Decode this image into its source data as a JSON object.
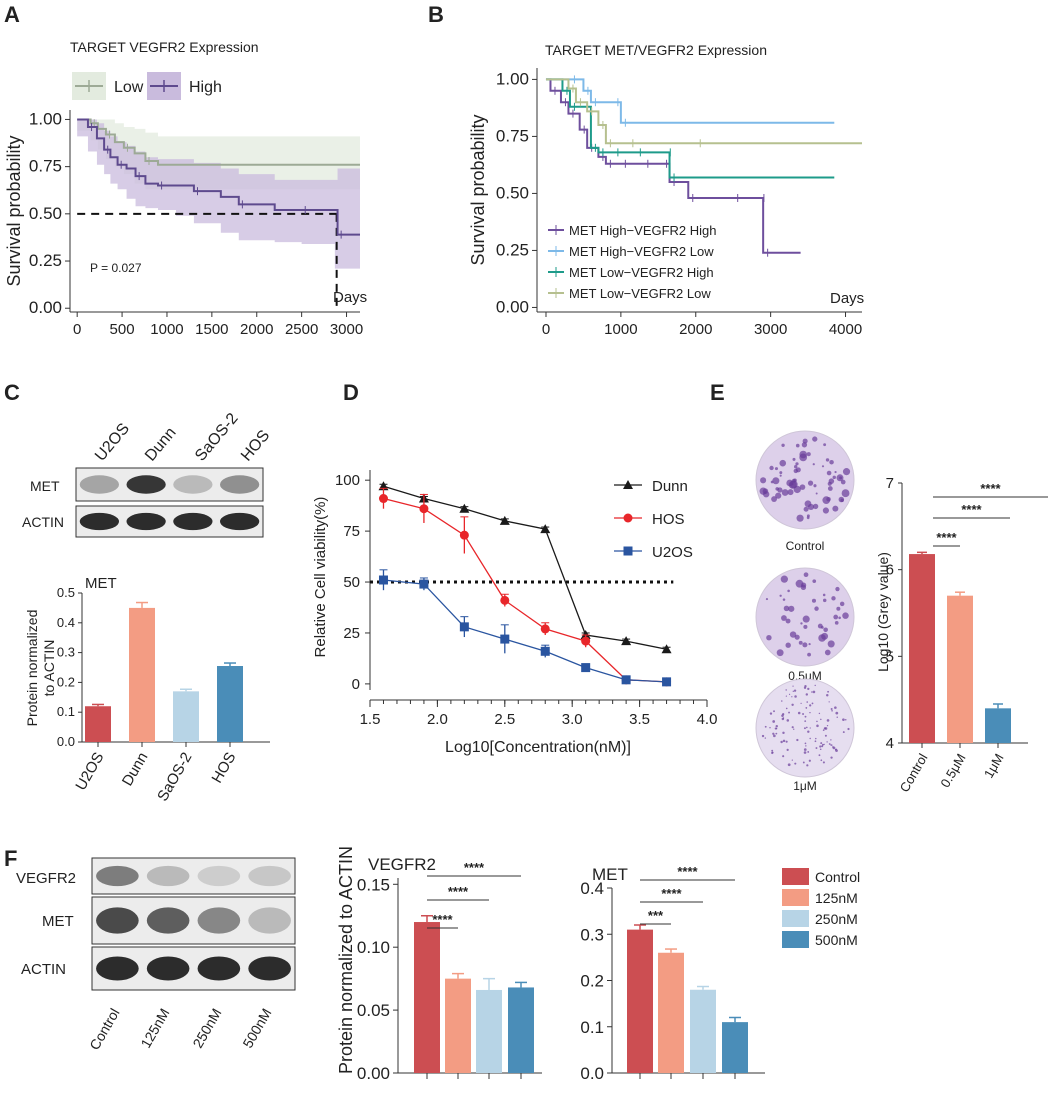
{
  "panels": {
    "A": "A",
    "B": "B",
    "C": "C",
    "D": "D",
    "E": "E",
    "F": "F"
  },
  "colors": {
    "km_low": "#9daa96",
    "km_high": "#5e4a8e",
    "b1": "#6e4f9d",
    "b2": "#7db9e8",
    "b3": "#1e9b8a",
    "b4": "#b6c08f",
    "red": "#cc4e52",
    "salmon": "#f39c83",
    "lightblue": "#b7d4e6",
    "blue": "#4a8db8",
    "dunn": "#1a1a1a",
    "hos": "#e8262a",
    "u2os": "#2a55a0"
  },
  "chart_data": [
    {
      "id": "A",
      "type": "line",
      "title": "TARGET VEGFR2 Expression",
      "xlabel": "Days",
      "ylabel": "Survival probability",
      "xlim": [
        -80,
        3150
      ],
      "ylim": [
        -0.02,
        1.05
      ],
      "xticks": [
        0,
        500,
        1000,
        1500,
        2000,
        2500,
        3000
      ],
      "yticks": [
        0.0,
        0.25,
        0.5,
        0.75,
        1.0
      ],
      "ytick_labels": [
        "0.00",
        "0.25",
        "0.50",
        "0.75",
        "1.00"
      ],
      "annotation": "P = 0.027",
      "legend": [
        "Low",
        "High"
      ],
      "series": [
        {
          "name": "Low",
          "color": "#9daa96",
          "band": "#e3ebdf",
          "x": [
            0,
            150,
            230,
            320,
            420,
            520,
            640,
            760,
            900,
            3150
          ],
          "y": [
            1.0,
            0.98,
            0.95,
            0.92,
            0.88,
            0.85,
            0.82,
            0.78,
            0.76,
            0.76
          ],
          "lo": [
            1.0,
            0.94,
            0.89,
            0.84,
            0.79,
            0.75,
            0.71,
            0.66,
            0.63,
            0.63
          ],
          "hi": [
            1.0,
            1.0,
            1.0,
            1.0,
            0.98,
            0.96,
            0.95,
            0.93,
            0.91,
            0.91
          ]
        },
        {
          "name": "High",
          "color": "#5e4a8e",
          "band": "#c9bbdd",
          "x": [
            0,
            120,
            220,
            300,
            370,
            450,
            550,
            650,
            760,
            900,
            1100,
            1300,
            1600,
            1800,
            2200,
            2500,
            2870,
            2900,
            3150
          ],
          "y": [
            1.0,
            0.96,
            0.9,
            0.84,
            0.8,
            0.76,
            0.74,
            0.7,
            0.66,
            0.65,
            0.65,
            0.62,
            0.59,
            0.55,
            0.52,
            0.52,
            0.52,
            0.39,
            0.39
          ],
          "lo": [
            1.0,
            0.91,
            0.83,
            0.76,
            0.71,
            0.66,
            0.63,
            0.58,
            0.54,
            0.53,
            0.52,
            0.49,
            0.45,
            0.4,
            0.36,
            0.35,
            0.34,
            0.21,
            0.21
          ],
          "hi": [
            1.0,
            1.0,
            0.98,
            0.94,
            0.91,
            0.88,
            0.86,
            0.83,
            0.8,
            0.79,
            0.79,
            0.77,
            0.74,
            0.71,
            0.68,
            0.68,
            0.68,
            0.74,
            0.74
          ]
        }
      ]
    },
    {
      "id": "B",
      "type": "line",
      "title": "TARGET MET/VEGFR2 Expression",
      "xlabel": "Days",
      "ylabel": "Survival probability",
      "xlim": [
        -120,
        4220
      ],
      "ylim": [
        -0.02,
        1.05
      ],
      "xticks": [
        0,
        1000,
        2000,
        3000,
        4000
      ],
      "yticks": [
        0.0,
        0.25,
        0.5,
        0.75,
        1.0
      ],
      "ytick_labels": [
        "0.00",
        "0.25",
        "0.50",
        "0.75",
        "1.00"
      ],
      "legend": [
        "MET High−VEGFR2 High",
        "MET High−VEGFR2 Low",
        "MET Low−VEGFR2 High",
        "MET Low−VEGFR2 Low"
      ],
      "series": [
        {
          "name": "MET High−VEGFR2 High",
          "color": "#6e4f9d",
          "x": [
            0,
            60,
            200,
            300,
            450,
            550,
            700,
            800,
            1000,
            1300,
            1550,
            1650,
            1900,
            2500,
            2850,
            2900,
            3400
          ],
          "y": [
            1.0,
            0.95,
            0.9,
            0.85,
            0.78,
            0.7,
            0.66,
            0.63,
            0.63,
            0.63,
            0.63,
            0.55,
            0.48,
            0.48,
            0.48,
            0.24,
            0.24
          ]
        },
        {
          "name": "MET High−VEGFR2 Low",
          "color": "#7db9e8",
          "x": [
            0,
            320,
            500,
            600,
            900,
            1000,
            3850
          ],
          "y": [
            1.0,
            1.0,
            0.95,
            0.9,
            0.9,
            0.81,
            0.81
          ]
        },
        {
          "name": "MET Low−VEGFR2 High",
          "color": "#1e9b8a",
          "x": [
            0,
            220,
            320,
            600,
            700,
            900,
            1200,
            1600,
            1650,
            3850
          ],
          "y": [
            1.0,
            0.95,
            0.88,
            0.7,
            0.68,
            0.68,
            0.68,
            0.68,
            0.57,
            0.57
          ]
        },
        {
          "name": "MET Low−VEGFR2 Low",
          "color": "#b6c08f",
          "x": [
            0,
            300,
            400,
            550,
            700,
            800,
            1100,
            2000,
            4220
          ],
          "y": [
            1.0,
            0.96,
            0.9,
            0.86,
            0.8,
            0.72,
            0.72,
            0.72,
            0.72
          ]
        }
      ]
    },
    {
      "id": "C",
      "type": "bar",
      "title": "MET",
      "ylabel": "Protein normalized\nto ACTIN",
      "categories": [
        "U2OS",
        "Dunn",
        "SaOS-2",
        "HOS"
      ],
      "values": [
        0.12,
        0.45,
        0.17,
        0.255
      ],
      "errors": [
        0.006,
        0.018,
        0.007,
        0.01
      ],
      "ylim": [
        0,
        0.5
      ],
      "yticks": [
        0.0,
        0.1,
        0.2,
        0.3,
        0.4,
        0.5
      ],
      "ytick_labels": [
        "0.0",
        "0.1",
        "0.2",
        "0.3",
        "0.4",
        "0.5"
      ],
      "colors": [
        "#cc4e52",
        "#f39c83",
        "#b7d4e6",
        "#4a8db8"
      ]
    },
    {
      "id": "D",
      "type": "line",
      "xlabel": "Log10[Concentration(nM)]",
      "ylabel": "Relative Cell viability(%)",
      "xlim": [
        1.5,
        4.0
      ],
      "ylim": [
        -3,
        105
      ],
      "xticks": [
        1.5,
        2.0,
        2.5,
        3.0,
        3.5,
        4.0
      ],
      "xtick_labels": [
        "1.5",
        "2.0",
        "2.5",
        "3.0",
        "3.5",
        "4.0"
      ],
      "yticks": [
        0,
        25,
        50,
        75,
        100
      ],
      "reference_line": 50,
      "series": [
        {
          "name": "Dunn",
          "color": "#1a1a1a",
          "marker": "triangle",
          "x": [
            1.6,
            1.9,
            2.2,
            2.5,
            2.8,
            3.1,
            3.4,
            3.7
          ],
          "y": [
            97,
            91,
            86,
            80,
            76,
            24,
            21,
            17
          ],
          "err": [
            1,
            1,
            1,
            1,
            1,
            1,
            1,
            1
          ]
        },
        {
          "name": "HOS",
          "color": "#e8262a",
          "marker": "circle",
          "x": [
            1.6,
            1.9,
            2.2,
            2.5,
            2.8,
            3.1,
            3.4,
            3.7
          ],
          "y": [
            91,
            86,
            73,
            41,
            27,
            21,
            2,
            1
          ],
          "err": [
            5,
            7,
            9,
            3,
            3,
            3,
            1,
            1
          ]
        },
        {
          "name": "U2OS",
          "color": "#2a55a0",
          "marker": "square",
          "x": [
            1.6,
            1.9,
            2.2,
            2.5,
            2.8,
            3.1,
            3.4,
            3.7
          ],
          "y": [
            51,
            49,
            28,
            22,
            16,
            8,
            2,
            1
          ],
          "err": [
            5,
            3,
            5,
            7,
            3,
            1,
            1,
            1
          ]
        }
      ]
    },
    {
      "id": "E",
      "type": "bar",
      "ylabel": "Log10 (Grey value)",
      "categories": [
        "Control",
        "0.5μM",
        "1μM"
      ],
      "values": [
        6.18,
        5.7,
        4.4
      ],
      "errors": [
        0.02,
        0.04,
        0.05
      ],
      "ylim": [
        4,
        7
      ],
      "yticks": [
        4,
        5,
        6,
        7
      ],
      "ytick_labels": [
        "4",
        "5",
        "6",
        "7"
      ],
      "colors": [
        "#cc4e52",
        "#f39c83",
        "#4a8db8"
      ],
      "significance": [
        "****",
        "****",
        "****"
      ],
      "images": [
        "Control",
        "0.5μM",
        "1μM"
      ]
    },
    {
      "id": "F1",
      "type": "bar",
      "title": "VEGFR2",
      "ylabel": "Protein normalized to ACTIN",
      "categories": [
        "Control",
        "125nM",
        "250nM",
        "500nM"
      ],
      "values": [
        0.12,
        0.075,
        0.066,
        0.068
      ],
      "errors": [
        0.005,
        0.004,
        0.009,
        0.004
      ],
      "ylim": [
        0,
        0.155
      ],
      "yticks": [
        0.0,
        0.05,
        0.1,
        0.15
      ],
      "ytick_labels": [
        "0.00",
        "0.05",
        "0.10",
        "0.15"
      ],
      "colors": [
        "#cc4e52",
        "#f39c83",
        "#b7d4e6",
        "#4a8db8"
      ],
      "significance": [
        "****",
        "****",
        "****"
      ]
    },
    {
      "id": "F2",
      "type": "bar",
      "title": "MET",
      "categories": [
        "Control",
        "125nM",
        "250nM",
        "500nM"
      ],
      "values": [
        0.31,
        0.26,
        0.18,
        0.11
      ],
      "errors": [
        0.01,
        0.008,
        0.007,
        0.01
      ],
      "ylim": [
        0,
        0.4
      ],
      "yticks": [
        0.0,
        0.1,
        0.2,
        0.3,
        0.4
      ],
      "ytick_labels": [
        "0.0",
        "0.1",
        "0.2",
        "0.3",
        "0.4"
      ],
      "colors": [
        "#cc4e52",
        "#f39c83",
        "#b7d4e6",
        "#4a8db8"
      ],
      "significance": [
        "***",
        "****",
        "****"
      ],
      "legend": [
        "Control",
        "125nM",
        "250nM",
        "500nM"
      ]
    }
  ],
  "western_C": {
    "lanes": [
      "U2OS",
      "Dunn",
      "SaOS-2",
      "HOS"
    ],
    "rows": [
      "MET",
      "ACTIN"
    ]
  },
  "western_F": {
    "lanes": [
      "Control",
      "125nM",
      "250nM",
      "500nM"
    ],
    "rows": [
      "VEGFR2",
      "MET",
      "ACTIN"
    ]
  }
}
